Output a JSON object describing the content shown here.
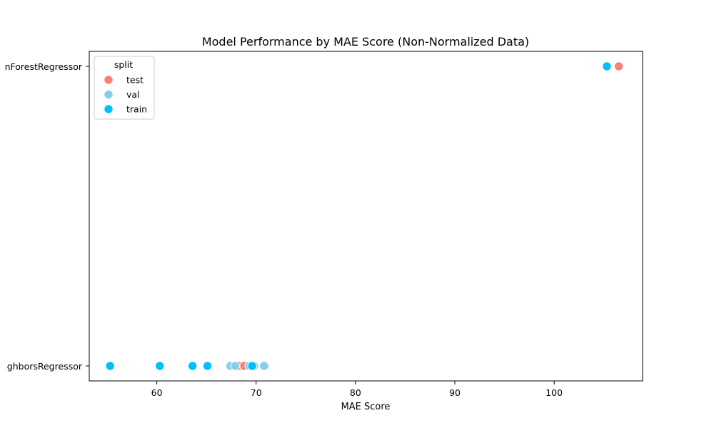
{
  "chart_data": {
    "type": "scatter",
    "title": "Model Performance by MAE Score (Non-Normalized Data)",
    "xlabel": "MAE Score",
    "ylabel": "",
    "xlim": [
      53.2,
      108.9
    ],
    "x_ticks": [
      60,
      70,
      80,
      90,
      100
    ],
    "categories": [
      "RandomForestRegressor",
      "KNeighborsRegressor"
    ],
    "category_tick_labels": [
      "nForestRegressor",
      "ghborsRegressor"
    ],
    "legend": {
      "title": "split",
      "placement": "top-left"
    },
    "grid": false,
    "colors": {
      "test": "#fa8072",
      "val": "#87ceeb",
      "train": "#00bfff"
    },
    "series": [
      {
        "name": "test",
        "points": [
          {
            "x": 106.5,
            "y": "RandomForestRegressor"
          },
          {
            "x": 68.3,
            "y": "KNeighborsRegressor"
          },
          {
            "x": 68.8,
            "y": "KNeighborsRegressor"
          },
          {
            "x": 69.6,
            "y": "KNeighborsRegressor"
          },
          {
            "x": 70.9,
            "y": "KNeighborsRegressor"
          }
        ]
      },
      {
        "name": "val",
        "points": [
          {
            "x": 105.3,
            "y": "RandomForestRegressor"
          },
          {
            "x": 67.4,
            "y": "KNeighborsRegressor"
          },
          {
            "x": 67.9,
            "y": "KNeighborsRegressor"
          },
          {
            "x": 69.3,
            "y": "KNeighborsRegressor"
          },
          {
            "x": 69.8,
            "y": "KNeighborsRegressor"
          },
          {
            "x": 70.8,
            "y": "KNeighborsRegressor"
          }
        ]
      },
      {
        "name": "train",
        "points": [
          {
            "x": 105.3,
            "y": "RandomForestRegressor"
          },
          {
            "x": 55.3,
            "y": "KNeighborsRegressor"
          },
          {
            "x": 60.3,
            "y": "KNeighborsRegressor"
          },
          {
            "x": 63.6,
            "y": "KNeighborsRegressor"
          },
          {
            "x": 65.1,
            "y": "KNeighborsRegressor"
          },
          {
            "x": 69.6,
            "y": "KNeighborsRegressor"
          }
        ]
      }
    ]
  }
}
